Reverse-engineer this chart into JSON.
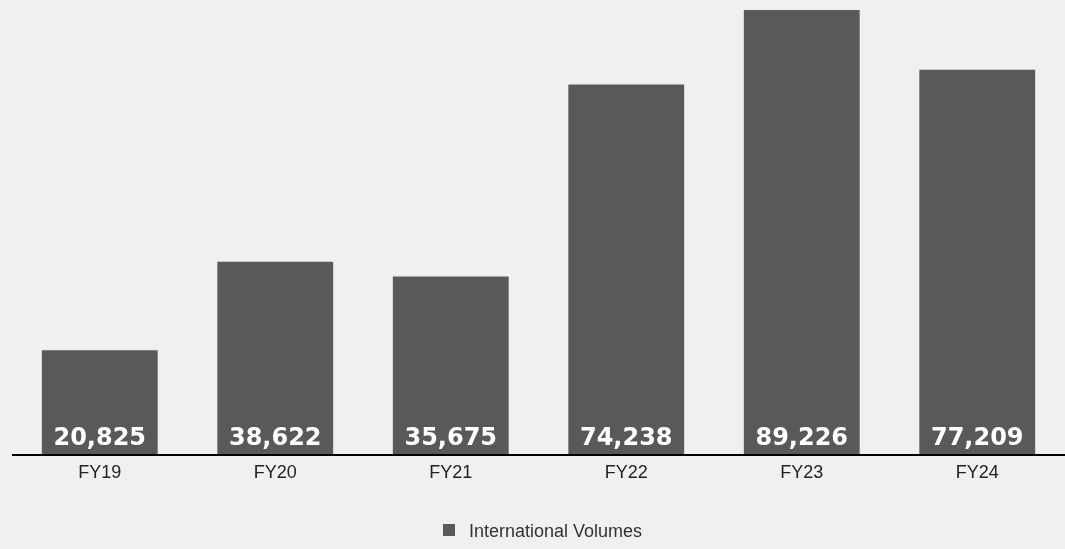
{
  "chart_data": {
    "type": "bar",
    "categories": [
      "FY19",
      "FY20",
      "FY21",
      "FY22",
      "FY23",
      "FY24"
    ],
    "series": [
      {
        "name": "International Volumes",
        "color": "#595959",
        "values": [
          20825,
          38622,
          35675,
          74238,
          89226,
          77209
        ],
        "value_labels": [
          "20,825",
          "38,622",
          "35,675",
          "74,238",
          "89,226",
          "77,209"
        ]
      }
    ],
    "grid": false,
    "legend": "bottom"
  }
}
